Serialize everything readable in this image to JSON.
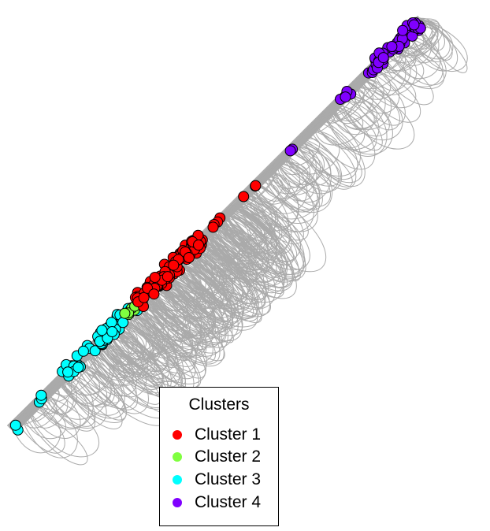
{
  "legend": {
    "title": "Clusters",
    "items": [
      {
        "label": "Cluster 1",
        "color": "#ff0000"
      },
      {
        "label": "Cluster 2",
        "color": "#80ff40"
      },
      {
        "label": "Cluster 3",
        "color": "#00ffff"
      },
      {
        "label": "Cluster 4",
        "color": "#8000ff"
      }
    ]
  },
  "style": {
    "edge_color": "#aaaaaa",
    "node_stroke": "#000000"
  }
}
